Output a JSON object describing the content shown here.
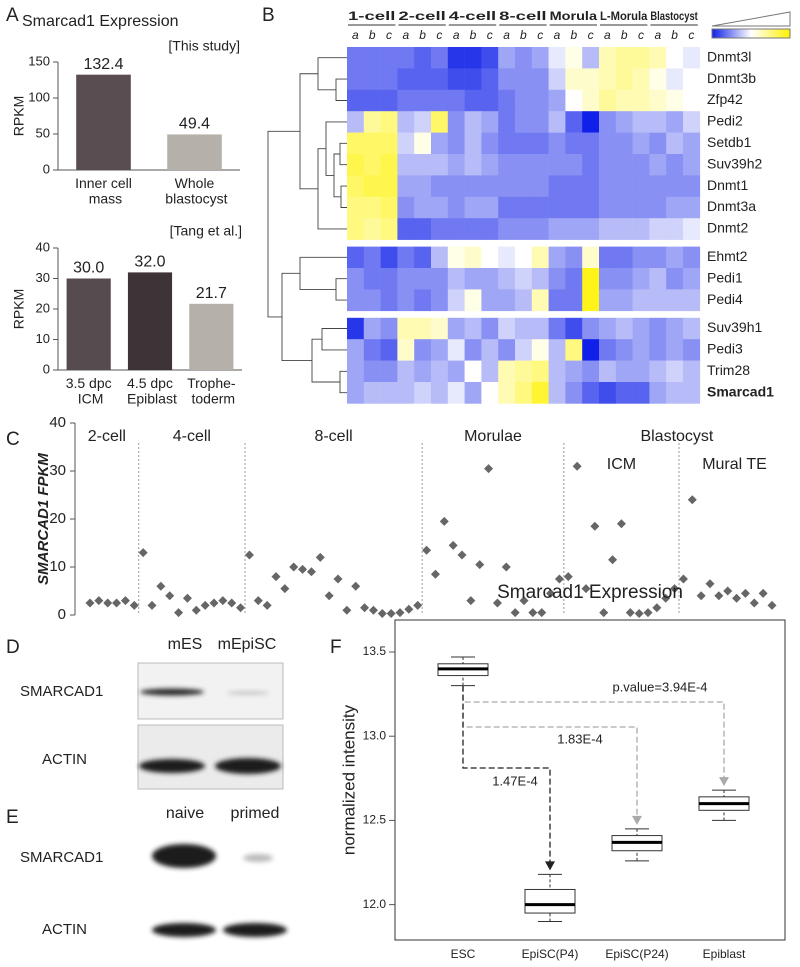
{
  "panel_labels": [
    "A",
    "B",
    "C",
    "D",
    "E",
    "F"
  ],
  "chart_data": [
    {
      "type": "bar",
      "title": "Smarcad1 Expression",
      "annotation": "[This study]",
      "y_label": "RPKM",
      "categories": [
        "Inner cell\nmass",
        "Whole\nblastocyst"
      ],
      "values": [
        132.4,
        49.4
      ],
      "colors": [
        "#5a4d51",
        "#b5b1aa"
      ],
      "ylim": [
        0,
        150
      ],
      "yticks": [
        0,
        50,
        100,
        150
      ]
    },
    {
      "type": "bar",
      "annotation": "[Tang et al.]",
      "y_label": "RPKM",
      "categories": [
        "3.5 dpc\nICM",
        "4.5 dpc\nEpiblast",
        "Trophe-\ntoderm"
      ],
      "values": [
        30.0,
        32.0,
        21.7
      ],
      "value_labels": [
        "30.0",
        "32.0",
        "21.7"
      ],
      "colors": [
        "#564b4f",
        "#3e3438",
        "#b5b1aa"
      ],
      "ylim": [
        0,
        40
      ],
      "yticks": [
        0,
        10,
        20,
        30,
        40
      ]
    },
    {
      "type": "heatmap",
      "stages": [
        "1-cell",
        "2-cell",
        "4-cell",
        "8-cell",
        "Morula",
        "L-Morula",
        "Blastocyst"
      ],
      "subcolumns": [
        "a",
        "b",
        "c"
      ],
      "rows": [
        "Dnmt3l",
        "Dnmt3b",
        "Zfp42",
        "Pedi2",
        "Setdb1",
        "Suv39h2",
        "Dnmt1",
        "Dnmt3a",
        "Dnmt2",
        "Ehmt2",
        "Pedi1",
        "Pedi4",
        "Suv39h1",
        "Pedi3",
        "Trim28",
        "Smarcad1"
      ],
      "values": [
        [
          -0.6,
          -0.6,
          -0.6,
          -0.6,
          -0.7,
          -0.6,
          -0.9,
          -0.9,
          -0.8,
          -0.4,
          -0.5,
          -0.4,
          -0.1,
          0.1,
          -0.3,
          0.3,
          0.4,
          0.4,
          0.3,
          0.0,
          -0.1
        ],
        [
          -0.6,
          -0.6,
          -0.6,
          -0.7,
          -0.7,
          -0.7,
          -0.8,
          -0.8,
          -0.7,
          -0.5,
          -0.5,
          -0.5,
          -0.2,
          0.2,
          0.2,
          0.3,
          0.4,
          0.3,
          0.1,
          -0.1,
          0.0
        ],
        [
          -0.7,
          -0.7,
          -0.7,
          -0.6,
          -0.6,
          -0.6,
          -0.6,
          -0.7,
          -0.7,
          -0.6,
          -0.5,
          -0.5,
          -0.4,
          0.0,
          0.2,
          0.4,
          0.3,
          0.3,
          0.2,
          0.1,
          0.0
        ],
        [
          -0.3,
          0.4,
          0.5,
          -0.3,
          -0.2,
          0.6,
          -0.5,
          -0.3,
          -0.4,
          -0.6,
          -0.5,
          -0.5,
          -0.3,
          -0.7,
          -1.0,
          -0.5,
          -0.4,
          -0.3,
          -0.3,
          -0.4,
          -0.2
        ],
        [
          0.6,
          0.6,
          0.6,
          -0.2,
          0.1,
          -0.4,
          -0.5,
          -0.3,
          -0.5,
          -0.6,
          -0.6,
          -0.6,
          -0.5,
          -0.6,
          -0.6,
          -0.5,
          -0.5,
          -0.4,
          -0.5,
          -0.3,
          -0.4
        ],
        [
          0.7,
          0.6,
          0.7,
          -0.3,
          -0.3,
          -0.3,
          -0.4,
          -0.3,
          -0.4,
          -0.5,
          -0.5,
          -0.5,
          -0.5,
          -0.5,
          -0.6,
          -0.5,
          -0.5,
          -0.5,
          -0.4,
          -0.5,
          -0.4
        ],
        [
          0.6,
          0.7,
          0.7,
          -0.4,
          -0.4,
          -0.5,
          -0.5,
          -0.5,
          -0.5,
          -0.5,
          -0.5,
          -0.5,
          -0.6,
          -0.6,
          -0.6,
          -0.5,
          -0.5,
          -0.5,
          -0.5,
          -0.5,
          -0.5
        ],
        [
          0.5,
          0.5,
          0.6,
          -0.5,
          -0.4,
          -0.4,
          -0.5,
          -0.4,
          -0.4,
          -0.6,
          -0.6,
          -0.6,
          -0.6,
          -0.6,
          -0.6,
          -0.5,
          -0.5,
          -0.5,
          -0.5,
          -0.4,
          -0.4
        ],
        [
          0.5,
          0.4,
          0.5,
          -0.7,
          -0.7,
          -0.6,
          -0.6,
          -0.6,
          -0.6,
          -0.5,
          -0.5,
          -0.5,
          -0.4,
          -0.4,
          -0.4,
          -0.3,
          -0.3,
          -0.3,
          -0.2,
          -0.2,
          -0.1
        ],
        [
          -0.7,
          -0.6,
          -0.8,
          -0.6,
          -0.7,
          -0.3,
          0.1,
          0.2,
          0.0,
          -0.1,
          0.0,
          0.3,
          -0.4,
          -0.5,
          0.2,
          -0.6,
          -0.6,
          -0.5,
          -0.5,
          -0.4,
          -0.5
        ],
        [
          -0.5,
          -0.6,
          -0.6,
          -0.5,
          -0.5,
          -0.5,
          -0.3,
          -0.4,
          -0.4,
          -0.3,
          -0.2,
          -0.3,
          -0.5,
          -0.6,
          0.9,
          -0.5,
          -0.5,
          -0.4,
          -0.3,
          -0.5,
          -0.4
        ],
        [
          -0.5,
          -0.5,
          -0.6,
          -0.5,
          -0.6,
          -0.5,
          -0.2,
          0.1,
          -0.4,
          -0.4,
          -0.3,
          0.3,
          -0.6,
          -0.6,
          0.9,
          -0.4,
          -0.4,
          -0.3,
          -0.3,
          -0.3,
          -0.3
        ],
        [
          -0.9,
          -0.4,
          -0.5,
          0.3,
          0.3,
          0.2,
          -0.4,
          -0.3,
          -0.5,
          -0.2,
          -0.3,
          -0.3,
          -0.6,
          -0.8,
          -0.5,
          -0.4,
          -0.3,
          -0.4,
          -0.5,
          -0.4,
          -0.3
        ],
        [
          -0.4,
          -0.6,
          -0.7,
          0.2,
          -0.5,
          -0.4,
          -0.1,
          -0.5,
          -0.3,
          -0.5,
          -0.2,
          0.1,
          -0.3,
          0.5,
          -1.0,
          -0.6,
          -0.5,
          -0.4,
          -0.5,
          -0.4,
          -0.5
        ],
        [
          -0.4,
          -0.5,
          -0.5,
          -0.3,
          -0.4,
          -0.3,
          -0.4,
          0.0,
          -0.3,
          0.3,
          0.4,
          0.5,
          -0.3,
          -0.4,
          -0.5,
          -0.3,
          -0.4,
          -0.4,
          -0.3,
          -0.2,
          -0.3
        ],
        [
          -0.4,
          -0.3,
          -0.3,
          -0.3,
          -0.2,
          -0.3,
          -0.1,
          -0.4,
          0.0,
          0.3,
          0.5,
          0.8,
          -0.3,
          -0.5,
          -0.7,
          -0.8,
          -0.7,
          -0.7,
          -0.4,
          -0.3,
          -0.3
        ]
      ],
      "vlim": [
        -1,
        1
      ],
      "colors": [
        "#1020e8",
        "#ffffff",
        "#fff200"
      ]
    },
    {
      "type": "scatter",
      "y_label": "SMARCAD1 FPKM",
      "group_label": "Blastocyst",
      "color": "#666666",
      "series": [
        {
          "name": "2-cell",
          "values": [
            2.5,
            3,
            2.5,
            2.5,
            3,
            2
          ]
        },
        {
          "name": "4-cell",
          "values": [
            13,
            2,
            6,
            4,
            0.5,
            3.5,
            1,
            2,
            2.5,
            3,
            2.5,
            1.5
          ]
        },
        {
          "name": "8-cell",
          "values": [
            12.5,
            3,
            2,
            8,
            5.5,
            10,
            9.5,
            9,
            12,
            4,
            7.5,
            1,
            6,
            1.5,
            1,
            0.3,
            0.3,
            0.5,
            1.2,
            2
          ]
        },
        {
          "name": "Morulae",
          "values": [
            13.5,
            8.5,
            19.5,
            14.5,
            12.5,
            3,
            10.5,
            30.5,
            2.5,
            10,
            0.5,
            3,
            0.5,
            0.5,
            4.5,
            7.5
          ]
        },
        {
          "name": "ICM",
          "values": [
            8,
            31,
            5.5,
            18.5,
            0.5,
            11.5,
            19,
            0.5,
            0.3,
            0.5,
            1.5,
            3.5,
            5.5
          ]
        },
        {
          "name": "Mural TE",
          "values": [
            7.5,
            24,
            4,
            6.5,
            4,
            5,
            3.5,
            4.5,
            2.5,
            4.5,
            2
          ]
        }
      ],
      "ylim": [
        0,
        40
      ],
      "yticks": [
        0,
        10,
        20,
        30,
        40
      ]
    },
    {
      "type": "box",
      "title": "Smarcad1 Expression",
      "y_label": "normalized intensity",
      "categories": [
        "ESC",
        "EpiSC(P4)",
        "EpiSC(P24)",
        "Epiblast"
      ],
      "low": [
        13.3,
        11.9,
        12.26,
        12.5
      ],
      "q1": [
        13.36,
        11.95,
        12.32,
        12.56
      ],
      "median": [
        13.4,
        12.0,
        12.37,
        12.6
      ],
      "q3": [
        13.43,
        12.09,
        12.41,
        12.64
      ],
      "high": [
        13.47,
        12.18,
        12.45,
        12.68
      ],
      "ylim": [
        11.79,
        13.69
      ],
      "yticks": [
        {
          "value": 12,
          "label": "12.0"
        },
        {
          "value": 12.5,
          "label": "12.5"
        },
        {
          "value": 13,
          "label": "13.0"
        },
        {
          "value": 13.5,
          "label": "13.5"
        }
      ],
      "annotations": [
        "p.value=3.94E-4",
        "1.83E-4",
        "1.47E-4"
      ]
    }
  ],
  "blots": [
    {
      "lanes": [
        "mES",
        "mEpiSC"
      ],
      "bands": [
        "SMARCAD1",
        "ACTIN"
      ]
    },
    {
      "lanes": [
        "naive",
        "primed"
      ],
      "bands": [
        "SMARCAD1",
        "ACTIN"
      ]
    }
  ]
}
